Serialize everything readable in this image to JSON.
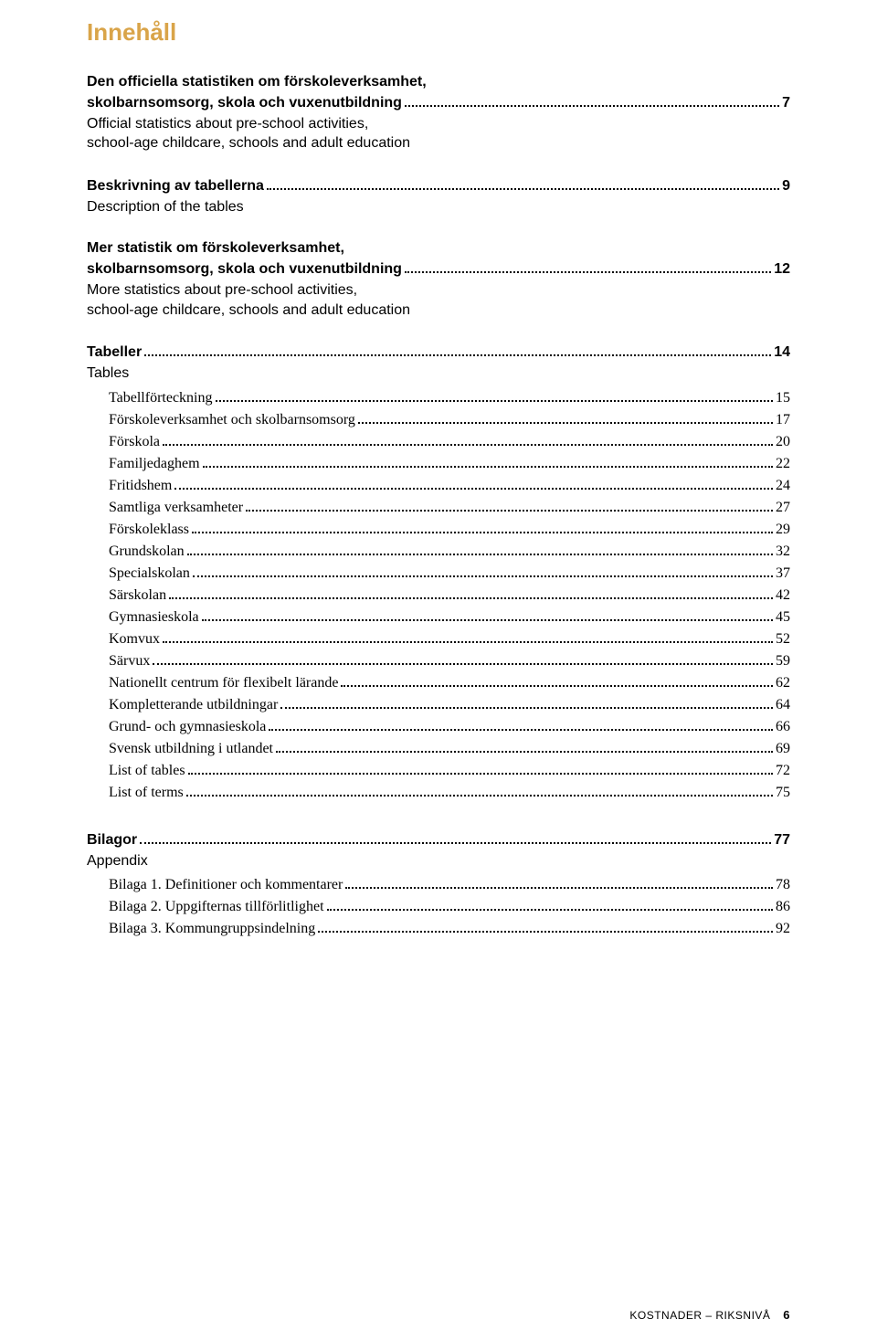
{
  "title": "Innehåll",
  "sections": [
    {
      "title_sv": "Den officiella statistiken om förskoleverksamhet, skolbarnsomsorg, skola och vuxenutbildning",
      "page": "7",
      "sub_en": "Official statistics about pre-school activities, school-age childcare, schools and adult education"
    },
    {
      "title_sv": "Beskrivning av tabellerna",
      "page": "9",
      "sub_en": "Description of the tables"
    },
    {
      "title_sv": "Mer statistik om förskoleverksamhet, skolbarnsomsorg, skola och vuxenutbildning",
      "page": "12",
      "sub_en": "More statistics about pre-school activities, school-age childcare, schools and adult education"
    }
  ],
  "tabeller": {
    "title": "Tabeller",
    "page": "14",
    "sub_en": "Tables",
    "items": [
      {
        "label": "Tabellförteckning",
        "page": "15"
      },
      {
        "label": "Förskoleverksamhet och skolbarnsomsorg",
        "page": "17"
      },
      {
        "label": "Förskola",
        "page": "20"
      },
      {
        "label": "Familjedaghem",
        "page": "22"
      },
      {
        "label": "Fritidshem",
        "page": "24"
      },
      {
        "label": "Samtliga verksamheter",
        "page": "27"
      },
      {
        "label": "Förskoleklass",
        "page": "29"
      },
      {
        "label": "Grundskolan",
        "page": "32"
      },
      {
        "label": "Specialskolan",
        "page": "37"
      },
      {
        "label": "Särskolan",
        "page": "42"
      },
      {
        "label": "Gymnasieskola",
        "page": "45"
      },
      {
        "label": "Komvux",
        "page": "52"
      },
      {
        "label": "Särvux",
        "page": "59"
      },
      {
        "label": "Nationellt centrum för flexibelt lärande",
        "page": "62"
      },
      {
        "label": "Kompletterande utbildningar",
        "page": "64"
      },
      {
        "label": "Grund- och gymnasieskola",
        "page": "66"
      },
      {
        "label": "Svensk utbildning i utlandet",
        "page": "69"
      },
      {
        "label": "List of tables",
        "page": "72"
      },
      {
        "label": "List of terms",
        "page": "75"
      }
    ]
  },
  "bilagor": {
    "title": "Bilagor",
    "page": "77",
    "sub_en": "Appendix",
    "items": [
      {
        "label": "Bilaga 1. Definitioner och kommentarer",
        "page": "78"
      },
      {
        "label": "Bilaga 2. Uppgifternas tillförlitlighet",
        "page": "86"
      },
      {
        "label": "Bilaga 3. Kommungruppsindelning",
        "page": "92"
      }
    ]
  },
  "footer": {
    "label": "KOSTNADER – RIKSNIVÅ",
    "page": "6"
  },
  "colors": {
    "heading": "#d9a449",
    "text": "#000000",
    "background": "#ffffff"
  },
  "typography": {
    "heading_fontsize_pt": 20,
    "body_fontsize_pt": 12,
    "serif_family": "Georgia",
    "sans_family": "Arial"
  }
}
